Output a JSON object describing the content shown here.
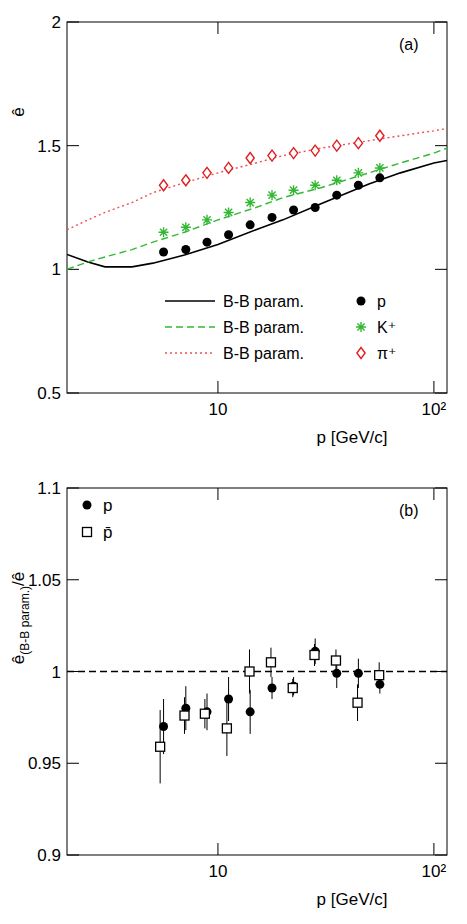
{
  "chart_data": [
    {
      "type": "scatter",
      "annotation": "(a)",
      "x_label": "p [GeV/c]",
      "y_label": "ê",
      "log": "x",
      "grid": false,
      "legend": "lower right",
      "xlim": [
        2,
        115
      ],
      "ylim": [
        0.5,
        2
      ],
      "xticks": [
        10,
        {
          "value": 100,
          "label": "10²"
        }
      ],
      "yticks": [
        0.5,
        1,
        1.5,
        2
      ],
      "series": [
        {
          "type": "line",
          "name": "B-B param.",
          "color": "#000000",
          "line_style": "solid",
          "x": [
            2,
            2.5,
            3,
            4,
            5,
            7,
            10,
            15,
            20,
            30,
            50,
            70,
            100,
            115
          ],
          "values": [
            1.06,
            1.03,
            1.01,
            1.01,
            1.025,
            1.058,
            1.1,
            1.16,
            1.2,
            1.265,
            1.345,
            1.39,
            1.43,
            1.44
          ]
        },
        {
          "type": "line",
          "name": "B-B param.",
          "color": "#33b833",
          "line_style": "dashed",
          "x": [
            2,
            2.5,
            3,
            4,
            5,
            7,
            10,
            15,
            20,
            30,
            50,
            70,
            100,
            115
          ],
          "values": [
            1.0,
            1.03,
            1.05,
            1.08,
            1.11,
            1.15,
            1.2,
            1.25,
            1.29,
            1.33,
            1.39,
            1.43,
            1.47,
            1.49
          ]
        },
        {
          "type": "line",
          "name": "B-B param.",
          "color": "#f05050",
          "line_style": "dotted",
          "x": [
            2,
            2.5,
            3,
            4,
            5,
            7,
            10,
            15,
            20,
            30,
            50,
            70,
            100,
            115
          ],
          "values": [
            1.16,
            1.2,
            1.23,
            1.27,
            1.31,
            1.35,
            1.39,
            1.43,
            1.46,
            1.49,
            1.52,
            1.54,
            1.56,
            1.57
          ]
        },
        {
          "type": "scatter",
          "name": "p",
          "color": "#000000",
          "marker": "circle",
          "x": [
            5.6,
            7.1,
            8.9,
            11.2,
            14.1,
            17.8,
            22.4,
            28.2,
            35.5,
            44.7,
            56.2
          ],
          "values": [
            1.07,
            1.08,
            1.11,
            1.14,
            1.18,
            1.21,
            1.24,
            1.25,
            1.3,
            1.34,
            1.37
          ]
        },
        {
          "type": "scatter",
          "name": "K⁺",
          "color": "#33b833",
          "marker": "asterisk",
          "x": [
            5.6,
            7.1,
            8.9,
            11.2,
            14.1,
            17.8,
            22.4,
            28.2,
            35.5,
            44.7,
            56.2
          ],
          "values": [
            1.15,
            1.17,
            1.2,
            1.23,
            1.27,
            1.3,
            1.32,
            1.34,
            1.36,
            1.39,
            1.41
          ]
        },
        {
          "type": "scatter",
          "name": "π⁺",
          "color": "#e02020",
          "marker": "open_diamond",
          "x": [
            5.6,
            7.1,
            8.9,
            11.2,
            14.1,
            17.8,
            22.4,
            28.2,
            35.5,
            44.7,
            56.2
          ],
          "values": [
            1.34,
            1.36,
            1.39,
            1.41,
            1.45,
            1.46,
            1.47,
            1.48,
            1.5,
            1.51,
            1.54
          ]
        }
      ]
    },
    {
      "type": "scatter",
      "annotation": "(b)",
      "x_label": "p [GeV/c]",
      "y_label": "ê(B-B param.)/ê",
      "log": "x",
      "grid": false,
      "legend": "upper left",
      "xlim": [
        2,
        115
      ],
      "ylim": [
        0.9,
        1.1
      ],
      "xticks": [
        10,
        {
          "value": 100,
          "label": "10²"
        }
      ],
      "yticks": [
        0.9,
        0.95,
        1,
        1.05,
        1.1
      ],
      "series": [
        {
          "type": "line",
          "color": "#000000",
          "line_style": "dashed",
          "x": [
            2,
            115
          ],
          "values": [
            1,
            1
          ]
        },
        {
          "type": "scatter",
          "name": "p",
          "color": "#000000",
          "marker": "circle",
          "x": [
            5.6,
            7.1,
            8.9,
            11.2,
            14.1,
            17.8,
            22.4,
            28.2,
            35.5,
            44.7,
            56.2
          ],
          "values": [
            0.97,
            0.98,
            0.978,
            0.985,
            0.978,
            0.991,
            0.992,
            1.011,
            0.999,
            0.999,
            0.993
          ],
          "errors": [
            0.015,
            0.012,
            0.01,
            0.012,
            0.012,
            0.006,
            0.005,
            0.007,
            0.008,
            0.008,
            0.005
          ]
        },
        {
          "type": "scatter",
          "name": "p̄",
          "color": "#000000",
          "marker": "open_square",
          "x": [
            5.4,
            7.0,
            8.7,
            11.0,
            14.0,
            17.6,
            22.2,
            28.0,
            35.2,
            44.3,
            55.8
          ],
          "values": [
            0.959,
            0.976,
            0.977,
            0.969,
            1.0,
            1.005,
            0.991,
            1.009,
            1.006,
            0.983,
            0.998
          ],
          "errors": [
            0.02,
            0.01,
            0.008,
            0.015,
            0.012,
            0.008,
            0.005,
            0.006,
            0.006,
            0.01,
            0.007
          ]
        }
      ]
    }
  ]
}
